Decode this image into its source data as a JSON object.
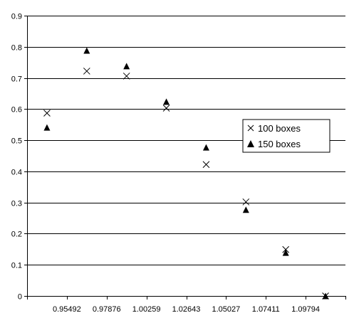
{
  "chart_data": {
    "type": "scatter",
    "title": "",
    "xlabel": "",
    "ylabel": "",
    "ylim": [
      0,
      0.9
    ],
    "y_ticks": [
      "0",
      "0.1",
      "0.2",
      "0.3",
      "0.4",
      "0.5",
      "0.6",
      "0.7",
      "0.8",
      "0.9"
    ],
    "x_tick_labels": [
      "0.95492",
      "0.97876",
      "1.00259",
      "1.02643",
      "1.05027",
      "1.07411",
      "1.09794"
    ],
    "categories": [
      "0.95492",
      "0.97876",
      "1.00259",
      "1.02643",
      "1.05027",
      "1.07411",
      "1.09794",
      ""
    ],
    "grid": "horizontal",
    "legend_position": "right",
    "series": [
      {
        "name": "100 boxes",
        "marker": "x",
        "color": "#000000",
        "values": [
          0.587,
          0.722,
          0.706,
          0.603,
          0.422,
          0.302,
          0.149,
          0.0
        ]
      },
      {
        "name": "150 boxes",
        "marker": "triangle",
        "color": "#000000",
        "values": [
          0.541,
          0.788,
          0.738,
          0.624,
          0.477,
          0.277,
          0.139,
          0.0
        ]
      }
    ]
  }
}
